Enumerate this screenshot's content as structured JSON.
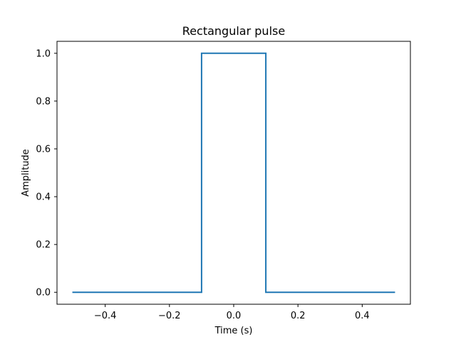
{
  "chart_data": {
    "type": "line",
    "title": "Rectangular pulse",
    "xlabel": "Time (s)",
    "ylabel": "Amplitude",
    "xlim": [
      -0.55,
      0.55
    ],
    "ylim": [
      -0.05,
      1.05
    ],
    "xticks": [
      -0.4,
      -0.2,
      0.0,
      0.2,
      0.4
    ],
    "xtick_labels": [
      "−0.4",
      "−0.2",
      "0.0",
      "0.2",
      "0.4"
    ],
    "yticks": [
      0.0,
      0.2,
      0.4,
      0.6,
      0.8,
      1.0
    ],
    "ytick_labels": [
      "0.0",
      "0.2",
      "0.4",
      "0.6",
      "0.8",
      "1.0"
    ],
    "grid": false,
    "legend": "none",
    "series": [
      {
        "color": "#1f77b4",
        "x": [
          -0.5,
          -0.1,
          -0.1,
          0.1,
          0.1,
          0.5
        ],
        "y": [
          0,
          0,
          1,
          1,
          0,
          0
        ]
      }
    ]
  }
}
